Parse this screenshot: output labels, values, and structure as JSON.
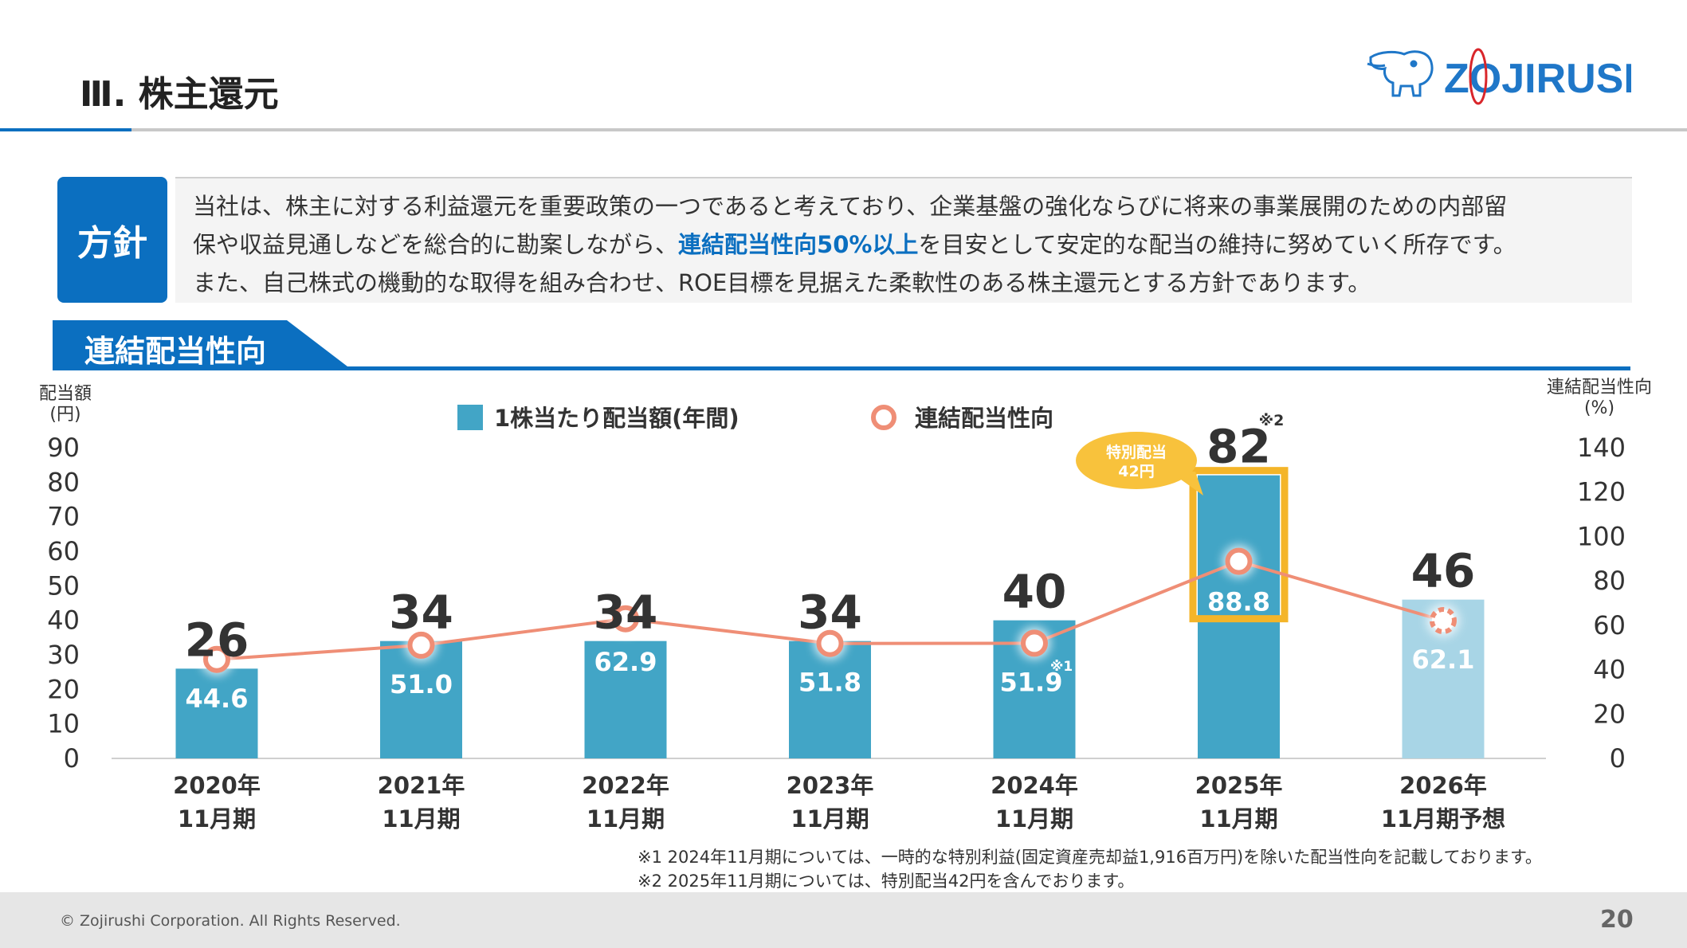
{
  "header": {
    "title": "Ⅲ. 株主還元",
    "logo_text": "ZOJIRUSHI"
  },
  "policy": {
    "badge": "方針",
    "line1": "当社は、株主に対する利益還元を重要政策の一つであると考えており、企業基盤の強化ならびに将来の事業展開のための内部留",
    "line2_before": "保や収益見通しなどを総合的に勘案しながら、",
    "line2_highlight": "連結配当性向50%以上",
    "line2_after": "を目安として安定的な配当の維持に努めていく所存です。",
    "line3": "また、自己株式の機動的な取得を組み合わせ、ROE目標を見据えた柔軟性のある株主還元とする方針であります。"
  },
  "section": {
    "title": "連結配当性向"
  },
  "chart_data": {
    "type": "bar+line",
    "categories": [
      [
        "2020年",
        "11月期"
      ],
      [
        "2021年",
        "11月期"
      ],
      [
        "2022年",
        "11月期"
      ],
      [
        "2023年",
        "11月期"
      ],
      [
        "2024年",
        "11月期"
      ],
      [
        "2025年",
        "11月期"
      ],
      [
        "2026年",
        "11月期予想"
      ]
    ],
    "left_axis": {
      "title_line1": "配当額",
      "title_line2": "(円)",
      "range": [
        0,
        90
      ],
      "ticks": [
        0,
        10,
        20,
        30,
        40,
        50,
        60,
        70,
        80,
        90
      ]
    },
    "right_axis": {
      "title_line1": "連結配当性向",
      "title_line2": "(%)",
      "range": [
        0,
        140
      ],
      "ticks": [
        0,
        20,
        40,
        60,
        80,
        100,
        120,
        140
      ]
    },
    "series": [
      {
        "name": "1株当たり配当額(年間)",
        "axis": "left",
        "kind": "bar",
        "values": [
          26,
          34,
          34,
          34,
          40,
          82,
          46
        ],
        "labels": [
          "26",
          "34",
          "34",
          "34",
          "40",
          "82",
          "46"
        ]
      },
      {
        "name": "連結配当性向",
        "axis": "right",
        "kind": "line",
        "values": [
          44.6,
          51.0,
          62.9,
          51.8,
          51.9,
          88.8,
          62.1
        ],
        "labels": [
          "44.6",
          "51.0",
          "62.9",
          "51.8",
          "51.9",
          "88.8",
          "62.1"
        ]
      }
    ],
    "forecast_index": 6,
    "annotations": {
      "bar_note_2024": "※1",
      "bar_note_2025": "※2",
      "callout_line1": "特別配当",
      "callout_line2": "42円"
    },
    "colors": {
      "bar": "#42a5c6",
      "bar_forecast": "#a8d5e6",
      "line": "#ef8e76",
      "highlight": "#f4b529",
      "callout": "#f8c23c"
    }
  },
  "notes": [
    "※1 2024年11月期については、一時的な特別利益(固定資産売却益1,916百万円)を除いた配当性向を記載しております。",
    "※2 2025年11月期については、特別配当42円を含んでおります。"
  ],
  "footer": {
    "copyright": "© Zojirushi Corporation. All Rights Reserved.",
    "page": "20"
  }
}
